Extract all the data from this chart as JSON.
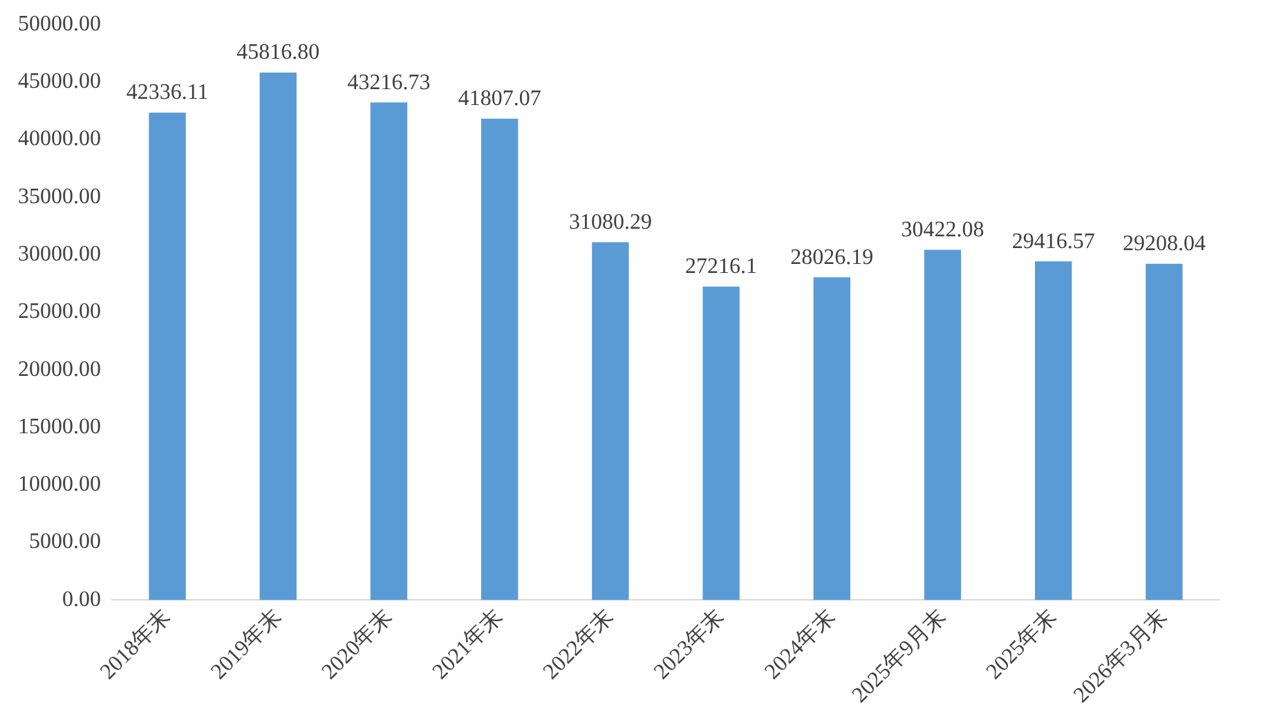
{
  "chart_data": {
    "type": "bar",
    "categories": [
      "2018年末",
      "2019年末",
      "2020年末",
      "2021年末",
      "2022年末",
      "2023年末",
      "2024年末",
      "2025年9月末",
      "2025年末",
      "2026年3月末"
    ],
    "values": [
      42336.11,
      45816.8,
      43216.73,
      41807.07,
      31080.29,
      27216.1,
      28026.19,
      30422.08,
      29416.57,
      29208.04
    ],
    "value_labels": [
      "42336.11",
      "45816.80",
      "43216.73",
      "41807.07",
      "31080.29",
      "27216.1",
      "28026.19",
      "30422.08",
      "29416.57",
      "29208.04"
    ],
    "color": "#5b9bd5",
    "ylim": [
      0,
      50000
    ],
    "yticks": [
      {
        "value": 0,
        "label": "0.00"
      },
      {
        "value": 5000,
        "label": "5000.00"
      },
      {
        "value": 10000,
        "label": "10000.00"
      },
      {
        "value": 15000,
        "label": "15000.00"
      },
      {
        "value": 20000,
        "label": "20000.00"
      },
      {
        "value": 25000,
        "label": "25000.00"
      },
      {
        "value": 30000,
        "label": "30000.00"
      },
      {
        "value": 35000,
        "label": "35000.00"
      },
      {
        "value": 40000,
        "label": "40000.00"
      },
      {
        "value": 45000,
        "label": "45000.00"
      },
      {
        "value": 50000,
        "label": "50000.00"
      }
    ],
    "grid": false,
    "legend": false
  }
}
